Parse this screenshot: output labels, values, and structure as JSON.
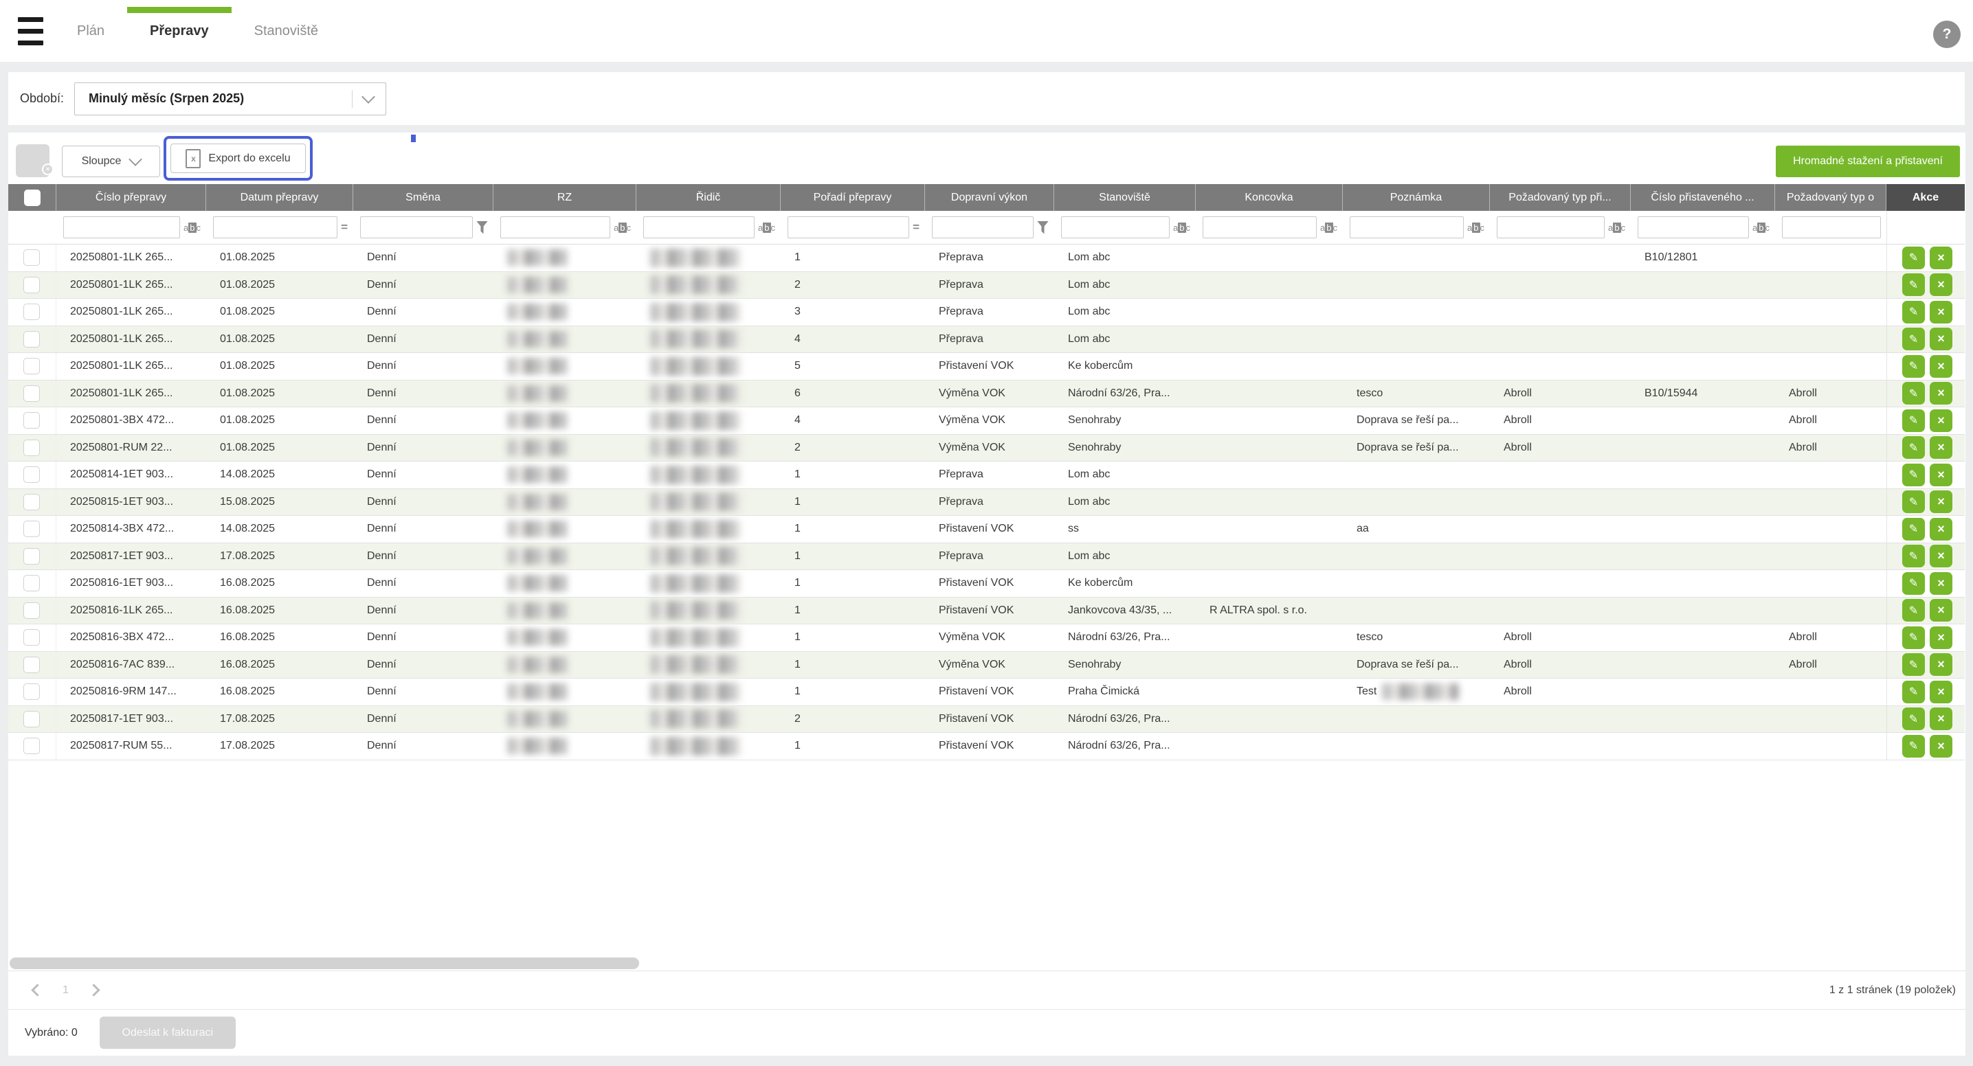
{
  "topbar": {
    "tabs": [
      {
        "label": "Plán",
        "active": false
      },
      {
        "label": "Přepravy",
        "active": true
      },
      {
        "label": "Stanoviště",
        "active": false
      }
    ]
  },
  "icons": {
    "help": "?",
    "edit": "✎",
    "delete": "×",
    "filter_contains_a": "a",
    "filter_contains_b": "b",
    "filter_contains_c": "c",
    "filter_eq": "=",
    "excel": "x"
  },
  "colors": {
    "accent_green": "#76b82a",
    "header_gray": "#7b7b7b",
    "action_header_gray": "#4f4f4f",
    "focus_blue": "#4a5fd4",
    "alt_row": "#f1f4ea"
  },
  "period": {
    "label": "Období:",
    "value": "Minulý měsíc (Srpen 2025)"
  },
  "toolbar": {
    "columns_button": "Sloupce",
    "export_button": "Export do excelu",
    "bulk_button": "Hromadné stažení a přistavení"
  },
  "table": {
    "columns": [
      {
        "label": "",
        "type": "checkbox",
        "filter": "none",
        "key": null
      },
      {
        "label": "Číslo přepravy",
        "filter": "abc",
        "key": "cislo"
      },
      {
        "label": "Datum přepravy",
        "filter": "eq",
        "key": "datum"
      },
      {
        "label": "Směna",
        "filter": "funnel",
        "key": "smena"
      },
      {
        "label": "RZ",
        "filter": "abc",
        "key": "rz",
        "blur": true
      },
      {
        "label": "Řidič",
        "filter": "abc",
        "key": "ridic",
        "blur": true
      },
      {
        "label": "Pořadí přepravy",
        "filter": "eq",
        "key": "poradi"
      },
      {
        "label": "Dopravní výkon",
        "filter": "funnel",
        "key": "vykon"
      },
      {
        "label": "Stanoviště",
        "filter": "abc",
        "key": "stanoviste"
      },
      {
        "label": "Koncovka",
        "filter": "abc",
        "key": "koncovka"
      },
      {
        "label": "Poznámka",
        "filter": "abc",
        "key": "poznamka"
      },
      {
        "label": "Požadovaný typ při...",
        "filter": "abc",
        "key": "typ_pri"
      },
      {
        "label": "Číslo přistaveného ...",
        "filter": "abc",
        "key": "cislo_prist"
      },
      {
        "label": "Požadovaný typ o",
        "filter": "input",
        "key": "typ_o"
      },
      {
        "label": "Akce",
        "type": "actions",
        "filter": "none",
        "key": null
      }
    ],
    "rows": [
      {
        "cislo": "20250801-1LK 265...",
        "datum": "01.08.2025",
        "smena": "Denní",
        "poradi": "1",
        "vykon": "Přeprava",
        "stanoviste": "Lom abc",
        "cislo_prist": "B10/12801"
      },
      {
        "cislo": "20250801-1LK 265...",
        "datum": "01.08.2025",
        "smena": "Denní",
        "poradi": "2",
        "vykon": "Přeprava",
        "stanoviste": "Lom abc"
      },
      {
        "cislo": "20250801-1LK 265...",
        "datum": "01.08.2025",
        "smena": "Denní",
        "poradi": "3",
        "vykon": "Přeprava",
        "stanoviste": "Lom abc"
      },
      {
        "cislo": "20250801-1LK 265...",
        "datum": "01.08.2025",
        "smena": "Denní",
        "poradi": "4",
        "vykon": "Přeprava",
        "stanoviste": "Lom abc"
      },
      {
        "cislo": "20250801-1LK 265...",
        "datum": "01.08.2025",
        "smena": "Denní",
        "poradi": "5",
        "vykon": "Přistavení VOK",
        "stanoviste": "Ke kobercům"
      },
      {
        "cislo": "20250801-1LK 265...",
        "datum": "01.08.2025",
        "smena": "Denní",
        "poradi": "6",
        "vykon": "Výměna VOK",
        "stanoviste": "Národní 63/26, Pra...",
        "poznamka": "tesco",
        "typ_pri": "Abroll",
        "cislo_prist": "B10/15944",
        "typ_o": "Abroll"
      },
      {
        "cislo": "20250801-3BX 472...",
        "datum": "01.08.2025",
        "smena": "Denní",
        "poradi": "4",
        "vykon": "Výměna VOK",
        "stanoviste": "Senohraby",
        "poznamka": "Doprava se řeší pa...",
        "typ_pri": "Abroll",
        "typ_o": "Abroll"
      },
      {
        "cislo": "20250801-RUM 22...",
        "datum": "01.08.2025",
        "smena": "Denní",
        "poradi": "2",
        "vykon": "Výměna VOK",
        "stanoviste": "Senohraby",
        "poznamka": "Doprava se řeší pa...",
        "typ_pri": "Abroll",
        "typ_o": "Abroll"
      },
      {
        "cislo": "20250814-1ET 903...",
        "datum": "14.08.2025",
        "smena": "Denní",
        "poradi": "1",
        "vykon": "Přeprava",
        "stanoviste": "Lom abc"
      },
      {
        "cislo": "20250815-1ET 903...",
        "datum": "15.08.2025",
        "smena": "Denní",
        "poradi": "1",
        "vykon": "Přeprava",
        "stanoviste": "Lom abc"
      },
      {
        "cislo": "20250814-3BX 472...",
        "datum": "14.08.2025",
        "smena": "Denní",
        "poradi": "1",
        "vykon": "Přistavení VOK",
        "stanoviste": "ss",
        "poznamka": "aa"
      },
      {
        "cislo": "20250817-1ET 903...",
        "datum": "17.08.2025",
        "smena": "Denní",
        "poradi": "1",
        "vykon": "Přeprava",
        "stanoviste": "Lom abc"
      },
      {
        "cislo": "20250816-1ET 903...",
        "datum": "16.08.2025",
        "smena": "Denní",
        "poradi": "1",
        "vykon": "Přistavení VOK",
        "stanoviste": "Ke kobercům"
      },
      {
        "cislo": "20250816-1LK 265...",
        "datum": "16.08.2025",
        "smena": "Denní",
        "poradi": "1",
        "vykon": "Přistavení VOK",
        "stanoviste": "Jankovcova 43/35, ...",
        "koncovka": "R ALTRA spol. s r.o."
      },
      {
        "cislo": "20250816-3BX 472...",
        "datum": "16.08.2025",
        "smena": "Denní",
        "poradi": "1",
        "vykon": "Výměna VOK",
        "stanoviste": "Národní 63/26, Pra...",
        "poznamka": "tesco",
        "typ_pri": "Abroll",
        "typ_o": "Abroll"
      },
      {
        "cislo": "20250816-7AC 839...",
        "datum": "16.08.2025",
        "smena": "Denní",
        "poradi": "1",
        "vykon": "Výměna VOK",
        "stanoviste": "Senohraby",
        "poznamka": "Doprava se řeší pa...",
        "typ_pri": "Abroll",
        "typ_o": "Abroll"
      },
      {
        "cislo": "20250816-9RM 147...",
        "datum": "16.08.2025",
        "smena": "Denní",
        "poradi": "1",
        "vykon": "Přistavení VOK",
        "stanoviste": "Praha Čimická",
        "poznamka": "Test",
        "poznamka_blur": true,
        "typ_pri": "Abroll"
      },
      {
        "cislo": "20250817-1ET 903...",
        "datum": "17.08.2025",
        "smena": "Denní",
        "poradi": "2",
        "vykon": "Přistavení VOK",
        "stanoviste": "Národní 63/26, Pra..."
      },
      {
        "cislo": "20250817-RUM 55...",
        "datum": "17.08.2025",
        "smena": "Denní",
        "poradi": "1",
        "vykon": "Přistavení VOK",
        "stanoviste": "Národní 63/26, Pra..."
      }
    ]
  },
  "pager": {
    "page": "1",
    "info": "1 z 1 stránek (19 položek)"
  },
  "footer": {
    "selected_label": "Vybráno: 0",
    "invoice_button": "Odeslat k fakturaci"
  }
}
